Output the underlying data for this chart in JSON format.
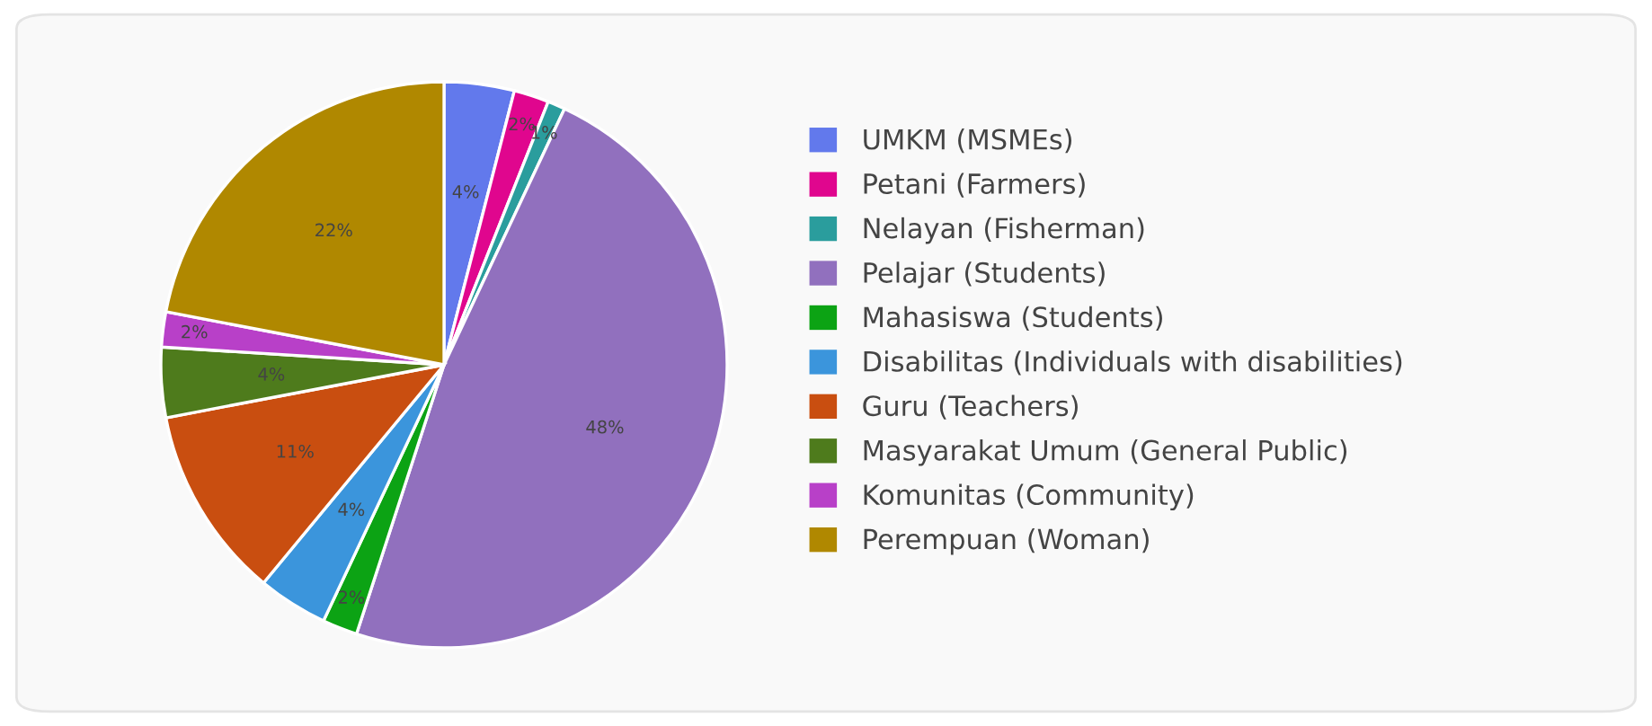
{
  "chart_data": {
    "type": "pie",
    "categories": [
      "UMKM (MSMEs)",
      "Petani (Farmers)",
      "Nelayan (Fisherman)",
      "Pelajar (Students)",
      "Mahasiswa (Students)",
      "Disabilitas (Individuals with disabilities)",
      "Guru (Teachers)",
      "Masyarakat Umum (General Public)",
      "Komunitas (Community)",
      "Perempuan (Woman)"
    ],
    "values": [
      4,
      2,
      1,
      48,
      2,
      4,
      11,
      4,
      2,
      22
    ],
    "colors": [
      "#6279ec",
      "#e0068e",
      "#2a9d9d",
      "#9170be",
      "#0ca314",
      "#3b95dc",
      "#c94e10",
      "#4e7b1c",
      "#b840c8",
      "#b08800"
    ],
    "value_labels": [
      "4%",
      "2%",
      "1%",
      "48%",
      "2%",
      "4%",
      "11%",
      "4%",
      "2%",
      "22%"
    ],
    "legend": "right"
  }
}
